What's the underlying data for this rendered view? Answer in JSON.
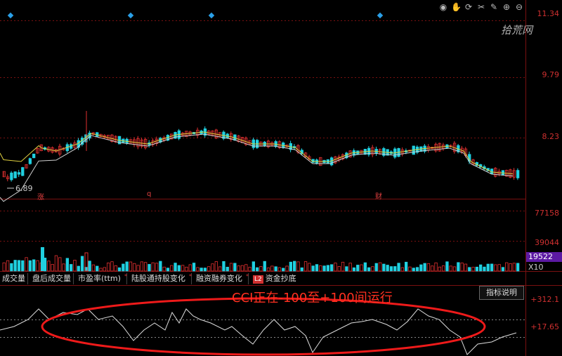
{
  "toolbar": {
    "icons": [
      "eye-icon",
      "hand-icon",
      "replay-icon",
      "scissors-icon",
      "pen-icon",
      "zoom-in-icon",
      "zoom-out-icon"
    ]
  },
  "watermark": "拾荒网",
  "price_axis": {
    "labels": [
      "11.34",
      "9.79",
      "8.23"
    ],
    "low_label": "6.89"
  },
  "markers": [
    "涨",
    "q",
    "财"
  ],
  "volume_axis": {
    "labels": [
      "77158",
      "39044"
    ],
    "current": "19522",
    "unit": "X10"
  },
  "tabs": [
    {
      "label": "成交量",
      "star": false
    },
    {
      "label": "盘后成交量",
      "star": false
    },
    {
      "label": "市盈率(ttm)",
      "star": true
    },
    {
      "label": "陆股通持股变化",
      "star": true
    },
    {
      "label": "融资融券变化",
      "star": true
    },
    {
      "label": "资金抄底",
      "star": false,
      "badge": "L2"
    }
  ],
  "indicator": {
    "help_button": "指标说明",
    "axis_labels": [
      "+312.1",
      "+17.65"
    ],
    "annotation": "CCI正在-100至+100间运行"
  },
  "colors": {
    "up": "#e03030",
    "down": "#20d0e0",
    "ma1": "#e0d040",
    "ma2": "#d0d0d0",
    "annotation": "#ff3020"
  }
}
